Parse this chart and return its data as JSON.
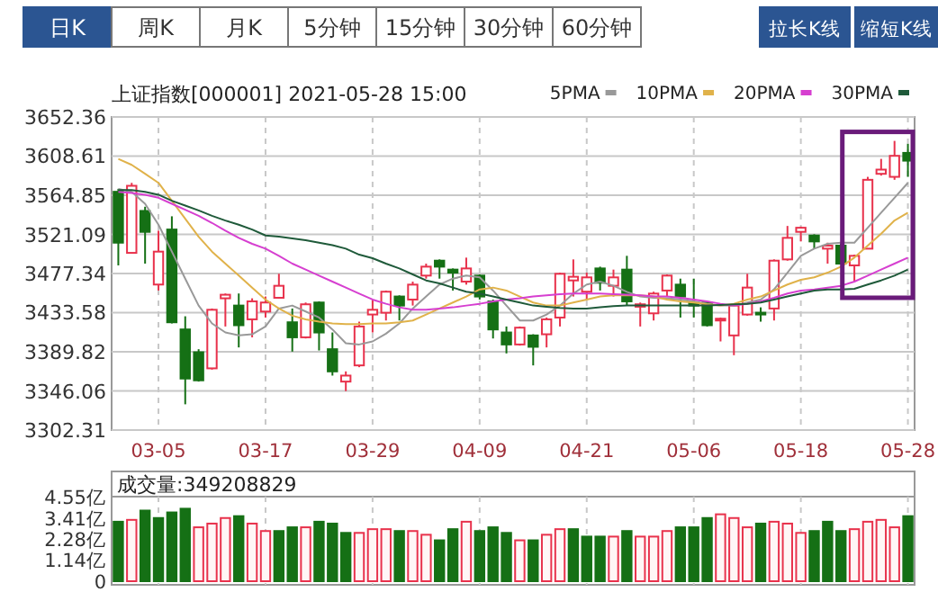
{
  "chart_data": [
    {
      "type": "candlestick",
      "title": "上证指数[000001] 2021-05-28 15:00",
      "annotations": [
        "日K",
        "周K",
        "月K",
        "5分钟",
        "15分钟",
        "30分钟",
        "60分钟",
        "拉长K线",
        "缩短K线"
      ],
      "categories": [
        null,
        null,
        null,
        "03-05",
        null,
        null,
        null,
        null,
        null,
        null,
        null,
        "03-17",
        null,
        null,
        null,
        null,
        null,
        null,
        null,
        "03-29",
        null,
        null,
        null,
        null,
        null,
        null,
        null,
        "04-09",
        null,
        null,
        null,
        null,
        null,
        null,
        null,
        "04-21",
        null,
        null,
        null,
        null,
        null,
        null,
        null,
        "05-06",
        null,
        null,
        null,
        null,
        null,
        null,
        null,
        "05-18",
        null,
        null,
        null,
        null,
        null,
        null,
        null,
        "05-28"
      ],
      "ohlc": [
        [
          3568.7,
          3572.0,
          3486.4,
          3511.8
        ],
        [
          3500.4,
          3578.7,
          3499.8,
          3575.4
        ],
        [
          3547.3,
          3552.0,
          3488.4,
          3523.9
        ],
        [
          3465.0,
          3525.2,
          3458.3,
          3501.8
        ],
        [
          3526.5,
          3541.3,
          3421.5,
          3422.8
        ],
        [
          3414.8,
          3429.5,
          3331.1,
          3359.9
        ],
        [
          3389.3,
          3392.7,
          3356.5,
          3357.9
        ],
        [
          3371.3,
          3438.2,
          3369.9,
          3436.8
        ],
        [
          3449.6,
          3455.0,
          3418.1,
          3453.6
        ],
        [
          3441.5,
          3455.0,
          3394.7,
          3419.5
        ],
        [
          3426.1,
          3449.6,
          3406.0,
          3446.2
        ],
        [
          3434.8,
          3451.6,
          3428.1,
          3444.9
        ],
        [
          3450.2,
          3477.0,
          3449.6,
          3463.6
        ],
        [
          3422.8,
          3438.2,
          3390.0,
          3406.0
        ],
        [
          3406.0,
          3444.9,
          3404.7,
          3442.9
        ],
        [
          3444.9,
          3446.2,
          3391.3,
          3411.4
        ],
        [
          3392.7,
          3411.4,
          3363.2,
          3367.9
        ],
        [
          3356.5,
          3367.9,
          3345.8,
          3363.2
        ],
        [
          3374.6,
          3423.5,
          3372.6,
          3418.1
        ],
        [
          3431.5,
          3448.2,
          3411.4,
          3436.8
        ],
        [
          3433.5,
          3458.3,
          3424.8,
          3457.0
        ],
        [
          3451.6,
          3452.9,
          3424.8,
          3441.5
        ],
        [
          3448.2,
          3468.3,
          3441.5,
          3464.9
        ],
        [
          3475.0,
          3488.4,
          3471.6,
          3485.0
        ],
        [
          3491.7,
          3493.1,
          3471.6,
          3485.0
        ],
        [
          3481.7,
          3483.0,
          3458.3,
          3478.3
        ],
        [
          3468.3,
          3495.1,
          3464.9,
          3483.0
        ],
        [
          3475.0,
          3476.3,
          3448.2,
          3451.6
        ],
        [
          3446.2,
          3448.2,
          3404.7,
          3414.8
        ],
        [
          3411.4,
          3418.1,
          3388.0,
          3398.0
        ],
        [
          3398.0,
          3418.1,
          3396.7,
          3416.8
        ],
        [
          3408.1,
          3409.4,
          3374.6,
          3395.4
        ],
        [
          3409.4,
          3428.1,
          3394.7,
          3426.1
        ],
        [
          3428.1,
          3478.3,
          3418.1,
          3477.0
        ],
        [
          3469.6,
          3493.1,
          3451.6,
          3473.7
        ],
        [
          3457.0,
          3478.3,
          3448.2,
          3473.0
        ],
        [
          3483.0,
          3485.0,
          3458.3,
          3467.0
        ],
        [
          3463.6,
          3481.7,
          3451.6,
          3473.0
        ],
        [
          3481.7,
          3497.1,
          3441.5,
          3446.2
        ],
        [
          3440.2,
          3444.9,
          3418.1,
          3442.9
        ],
        [
          3432.8,
          3457.0,
          3424.8,
          3454.9
        ],
        [
          3458.3,
          3476.3,
          3451.6,
          3475.0
        ],
        [
          3464.9,
          3471.6,
          3428.1,
          3451.6
        ],
        [
          3444.9,
          3471.6,
          3428.1,
          3441.5
        ],
        [
          3444.9,
          3446.2,
          3418.1,
          3419.5
        ],
        [
          3424.8,
          3428.1,
          3401.4,
          3426.8
        ],
        [
          3408.1,
          3442.9,
          3386.0,
          3441.5
        ],
        [
          3431.5,
          3477.0,
          3430.2,
          3461.6
        ],
        [
          3433.5,
          3439.5,
          3423.5,
          3431.5
        ],
        [
          3438.2,
          3493.1,
          3424.8,
          3491.7
        ],
        [
          3493.1,
          3530.5,
          3491.7,
          3517.2
        ],
        [
          3523.9,
          3529.8,
          3513.2,
          3528.5
        ],
        [
          3519.8,
          3521.2,
          3505.1,
          3513.2
        ],
        [
          3505.1,
          3511.8,
          3488.4,
          3508.5
        ],
        [
          3508.5,
          3511.8,
          3487.7,
          3488.4
        ],
        [
          3486.4,
          3498.4,
          3468.3,
          3497.1
        ],
        [
          3505.1,
          3585.4,
          3504.5,
          3582.1
        ],
        [
          3588.8,
          3605.5,
          3586.8,
          3593.5
        ],
        [
          3585.4,
          3625.6,
          3582.1,
          3608.9
        ],
        [
          3612.2,
          3622.3,
          3585.4,
          3603.5
        ]
      ],
      "colors": [
        "#157015",
        "#e8324c",
        "#157015",
        "#e8324c",
        "#157015",
        "#157015",
        "#157015",
        "#e8324c",
        "#e8324c",
        "#157015",
        "#e8324c",
        "#e8324c",
        "#e8324c",
        "#157015",
        "#e8324c",
        "#157015",
        "#157015",
        "#e8324c",
        "#e8324c",
        "#e8324c",
        "#e8324c",
        "#157015",
        "#e8324c",
        "#e8324c",
        "#157015",
        "#157015",
        "#e8324c",
        "#157015",
        "#157015",
        "#157015",
        "#e8324c",
        "#157015",
        "#e8324c",
        "#e8324c",
        "#e8324c",
        "#e8324c",
        "#157015",
        "#e8324c",
        "#157015",
        "#e8324c",
        "#e8324c",
        "#e8324c",
        "#157015",
        "#157015",
        "#157015",
        "#e8324c",
        "#e8324c",
        "#e8324c",
        "#157015",
        "#e8324c",
        "#e8324c",
        "#e8324c",
        "#157015",
        "#e8324c",
        "#157015",
        "#e8324c",
        "#e8324c",
        "#e8324c",
        "#e8324c",
        "#157015"
      ],
      "series": [
        {
          "name": "5PMA",
          "type": "line",
          "color": "#999999",
          "values": [
            3572.0,
            3568.7,
            3555.3,
            3531.9,
            3501.8,
            3471.6,
            3441.5,
            3421.5,
            3411.4,
            3408.1,
            3409.4,
            3418.1,
            3438.2,
            3441.5,
            3434.8,
            3428.1,
            3414.8,
            3399.4,
            3398.0,
            3401.4,
            3410.1,
            3421.5,
            3438.2,
            3451.6,
            3465.0,
            3471.6,
            3475.0,
            3473.0,
            3458.3,
            3441.5,
            3424.8,
            3424.8,
            3431.5,
            3441.5,
            3454.9,
            3465.0,
            3468.3,
            3463.6,
            3456.9,
            3451.6,
            3450.2,
            3449.6,
            3448.2,
            3446.2,
            3443.5,
            3441.5,
            3441.5,
            3444.9,
            3448.2,
            3459.6,
            3478.3,
            3497.1,
            3505.1,
            3510.5,
            3511.8,
            3511.8,
            3528.5,
            3545.3,
            3562.0,
            3578.7
          ]
        },
        {
          "name": "10PMA",
          "type": "line",
          "color": "#e0b24a",
          "values": [
            3605.5,
            3598.8,
            3588.8,
            3578.7,
            3558.7,
            3538.6,
            3518.5,
            3501.8,
            3488.4,
            3475.0,
            3461.6,
            3448.2,
            3438.2,
            3430.2,
            3426.1,
            3423.5,
            3421.5,
            3420.8,
            3420.8,
            3421.5,
            3421.5,
            3422.8,
            3424.8,
            3431.5,
            3438.2,
            3444.9,
            3451.6,
            3459.6,
            3461.6,
            3458.3,
            3451.6,
            3444.9,
            3441.5,
            3441.5,
            3444.9,
            3448.2,
            3451.6,
            3452.9,
            3452.9,
            3452.9,
            3451.6,
            3448.2,
            3446.2,
            3444.9,
            3442.9,
            3441.5,
            3443.5,
            3448.2,
            3451.6,
            3458.3,
            3465.0,
            3470.3,
            3473.0,
            3478.3,
            3485.0,
            3495.1,
            3508.5,
            3521.9,
            3536.6,
            3545.3
          ]
        },
        {
          "name": "20PMA",
          "type": "line",
          "color": "#d63fd0",
          "values": [
            3568.7,
            3567.4,
            3565.4,
            3562.0,
            3555.3,
            3548.6,
            3541.9,
            3533.9,
            3525.2,
            3517.2,
            3510.5,
            3505.1,
            3497.1,
            3488.4,
            3481.7,
            3475.0,
            3468.3,
            3461.6,
            3454.9,
            3448.2,
            3443.5,
            3439.5,
            3436.8,
            3436.8,
            3438.2,
            3439.5,
            3441.5,
            3443.5,
            3446.2,
            3448.2,
            3449.6,
            3451.6,
            3452.9,
            3454.2,
            3454.9,
            3454.9,
            3454.9,
            3454.2,
            3453.6,
            3452.9,
            3451.6,
            3451.6,
            3450.2,
            3448.2,
            3446.2,
            3443.5,
            3441.5,
            3443.5,
            3446.2,
            3450.2,
            3454.9,
            3458.3,
            3459.6,
            3461.6,
            3463.6,
            3468.3,
            3475.0,
            3481.7,
            3488.4,
            3495.1
          ]
        },
        {
          "name": "30PMA",
          "type": "line",
          "color": "#1f5a3a",
          "values": [
            3570.7,
            3570.7,
            3568.7,
            3565.4,
            3558.7,
            3553.3,
            3547.9,
            3541.9,
            3536.6,
            3531.9,
            3526.5,
            3519.8,
            3518.5,
            3516.5,
            3514.5,
            3511.8,
            3509.1,
            3505.1,
            3498.4,
            3494.4,
            3488.4,
            3483.0,
            3476.3,
            3469.6,
            3466.3,
            3461.6,
            3456.9,
            3454.9,
            3451.6,
            3448.2,
            3444.9,
            3441.5,
            3440.2,
            3438.9,
            3438.2,
            3438.2,
            3439.5,
            3440.9,
            3441.5,
            3441.5,
            3441.5,
            3441.5,
            3441.5,
            3441.5,
            3441.5,
            3442.2,
            3442.9,
            3443.5,
            3444.9,
            3448.2,
            3451.6,
            3454.9,
            3458.3,
            3459.6,
            3459.6,
            3460.3,
            3465.0,
            3469.6,
            3475.0,
            3481.7
          ]
        }
      ],
      "ylim": [
        3302.31,
        3652.36
      ],
      "yticks": [
        3302.31,
        3346.06,
        3389.82,
        3433.58,
        3477.34,
        3521.09,
        3564.85,
        3608.61,
        3652.36
      ],
      "grid": true,
      "legend": "top right"
    },
    {
      "type": "bar",
      "annotations": [
        "成交量:349208829"
      ],
      "values": [
        3.2,
        3.3,
        3.8,
        3.4,
        3.7,
        3.9,
        2.9,
        3.1,
        3.4,
        3.5,
        3.1,
        2.7,
        2.7,
        2.9,
        2.9,
        3.2,
        3.1,
        2.6,
        2.6,
        2.8,
        2.8,
        2.7,
        2.7,
        2.5,
        2.2,
        2.8,
        3.2,
        2.7,
        2.9,
        2.6,
        2.2,
        2.2,
        2.5,
        2.8,
        2.8,
        2.4,
        2.4,
        2.4,
        2.7,
        2.4,
        2.4,
        2.7,
        2.9,
        2.9,
        3.4,
        3.6,
        3.4,
        2.9,
        3.1,
        3.2,
        3.1,
        2.6,
        2.7,
        3.2,
        2.7,
        2.8,
        3.2,
        3.3,
        2.9,
        3.5
      ],
      "colors": [
        "#157015",
        "#e8324c",
        "#157015",
        "#157015",
        "#157015",
        "#157015",
        "#e8324c",
        "#e8324c",
        "#e8324c",
        "#157015",
        "#e8324c",
        "#e8324c",
        "#157015",
        "#157015",
        "#e8324c",
        "#157015",
        "#157015",
        "#157015",
        "#e8324c",
        "#e8324c",
        "#e8324c",
        "#157015",
        "#e8324c",
        "#e8324c",
        "#157015",
        "#157015",
        "#e8324c",
        "#157015",
        "#157015",
        "#157015",
        "#e8324c",
        "#157015",
        "#e8324c",
        "#e8324c",
        "#157015",
        "#157015",
        "#157015",
        "#e8324c",
        "#157015",
        "#e8324c",
        "#e8324c",
        "#e8324c",
        "#157015",
        "#157015",
        "#157015",
        "#e8324c",
        "#e8324c",
        "#e8324c",
        "#157015",
        "#e8324c",
        "#e8324c",
        "#e8324c",
        "#157015",
        "#157015",
        "#157015",
        "#e8324c",
        "#e8324c",
        "#e8324c",
        "#e8324c",
        "#157015"
      ],
      "ylim": [
        0,
        4.55
      ],
      "yticks": [
        0,
        {
          "value": 1.14,
          "label": "1.14亿"
        },
        {
          "value": 2.28,
          "label": "2.28亿"
        },
        {
          "value": 3.41,
          "label": "3.41亿"
        },
        {
          "value": 4.55,
          "label": "4.55亿"
        }
      ],
      "grid": "x",
      "tick_labels": "y"
    }
  ]
}
